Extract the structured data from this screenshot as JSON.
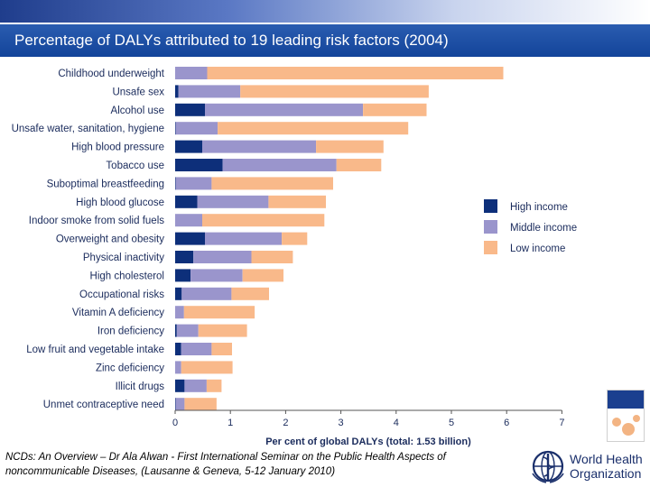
{
  "slide": {
    "title": "Percentage of DALYs attributed to 19 leading risk factors (2004)",
    "footer": "NCDs: An Overview – Dr Ala Alwan - First International Seminar on the Public Health Aspects of noncommunicable Diseases, (Lausanne & Geneva, 5-12 January 2010)",
    "logo_text": "World Health Organization"
  },
  "colors": {
    "title_bar": "#13449a",
    "text": "#1a2b5c",
    "high_income": "#0d2f7a",
    "middle_income": "#9a95cc",
    "low_income": "#f9b98a"
  },
  "icons": [
    "report-cover-icon",
    "who-emblem-icon"
  ],
  "chart_data": {
    "type": "bar",
    "orientation": "horizontal",
    "stacked": true,
    "categories": [
      "Childhood underweight",
      "Unsafe sex",
      "Alcohol use",
      "Unsafe water, sanitation, hygiene",
      "High blood pressure",
      "Tobacco use",
      "Suboptimal breastfeeding",
      "High blood glucose",
      "Indoor smoke from solid fuels",
      "Overweight and obesity",
      "Physical inactivity",
      "High cholesterol",
      "Occupational risks",
      "Vitamin A deficiency",
      "Iron deficiency",
      "Low fruit and vegetable intake",
      "Zinc deficiency",
      "Illicit drugs",
      "Unmet contraceptive need"
    ],
    "series": [
      {
        "name": "High income",
        "values": [
          0.0,
          0.06,
          0.54,
          0.01,
          0.49,
          0.86,
          0.01,
          0.4,
          0.0,
          0.54,
          0.33,
          0.28,
          0.12,
          0.0,
          0.03,
          0.11,
          0.0,
          0.17,
          0.01
        ]
      },
      {
        "name": "Middle income",
        "values": [
          0.58,
          1.12,
          2.86,
          0.76,
          2.06,
          2.06,
          0.65,
          1.29,
          0.49,
          1.39,
          1.05,
          0.94,
          0.9,
          0.16,
          0.39,
          0.55,
          0.11,
          0.4,
          0.16
        ]
      },
      {
        "name": "Low income",
        "values": [
          5.36,
          3.41,
          1.15,
          3.45,
          1.22,
          0.81,
          2.2,
          1.04,
          2.21,
          0.46,
          0.75,
          0.74,
          0.68,
          1.28,
          0.88,
          0.37,
          0.93,
          0.27,
          0.58
        ]
      }
    ],
    "xlim": [
      0,
      7
    ],
    "xticks": [
      "0",
      "1",
      "2",
      "3",
      "4",
      "5",
      "6",
      "7"
    ],
    "xlabel": "Per cent of global DALYs (total: 1.53 billion)",
    "ylabel": "",
    "grid": false,
    "legend_position": "right"
  }
}
